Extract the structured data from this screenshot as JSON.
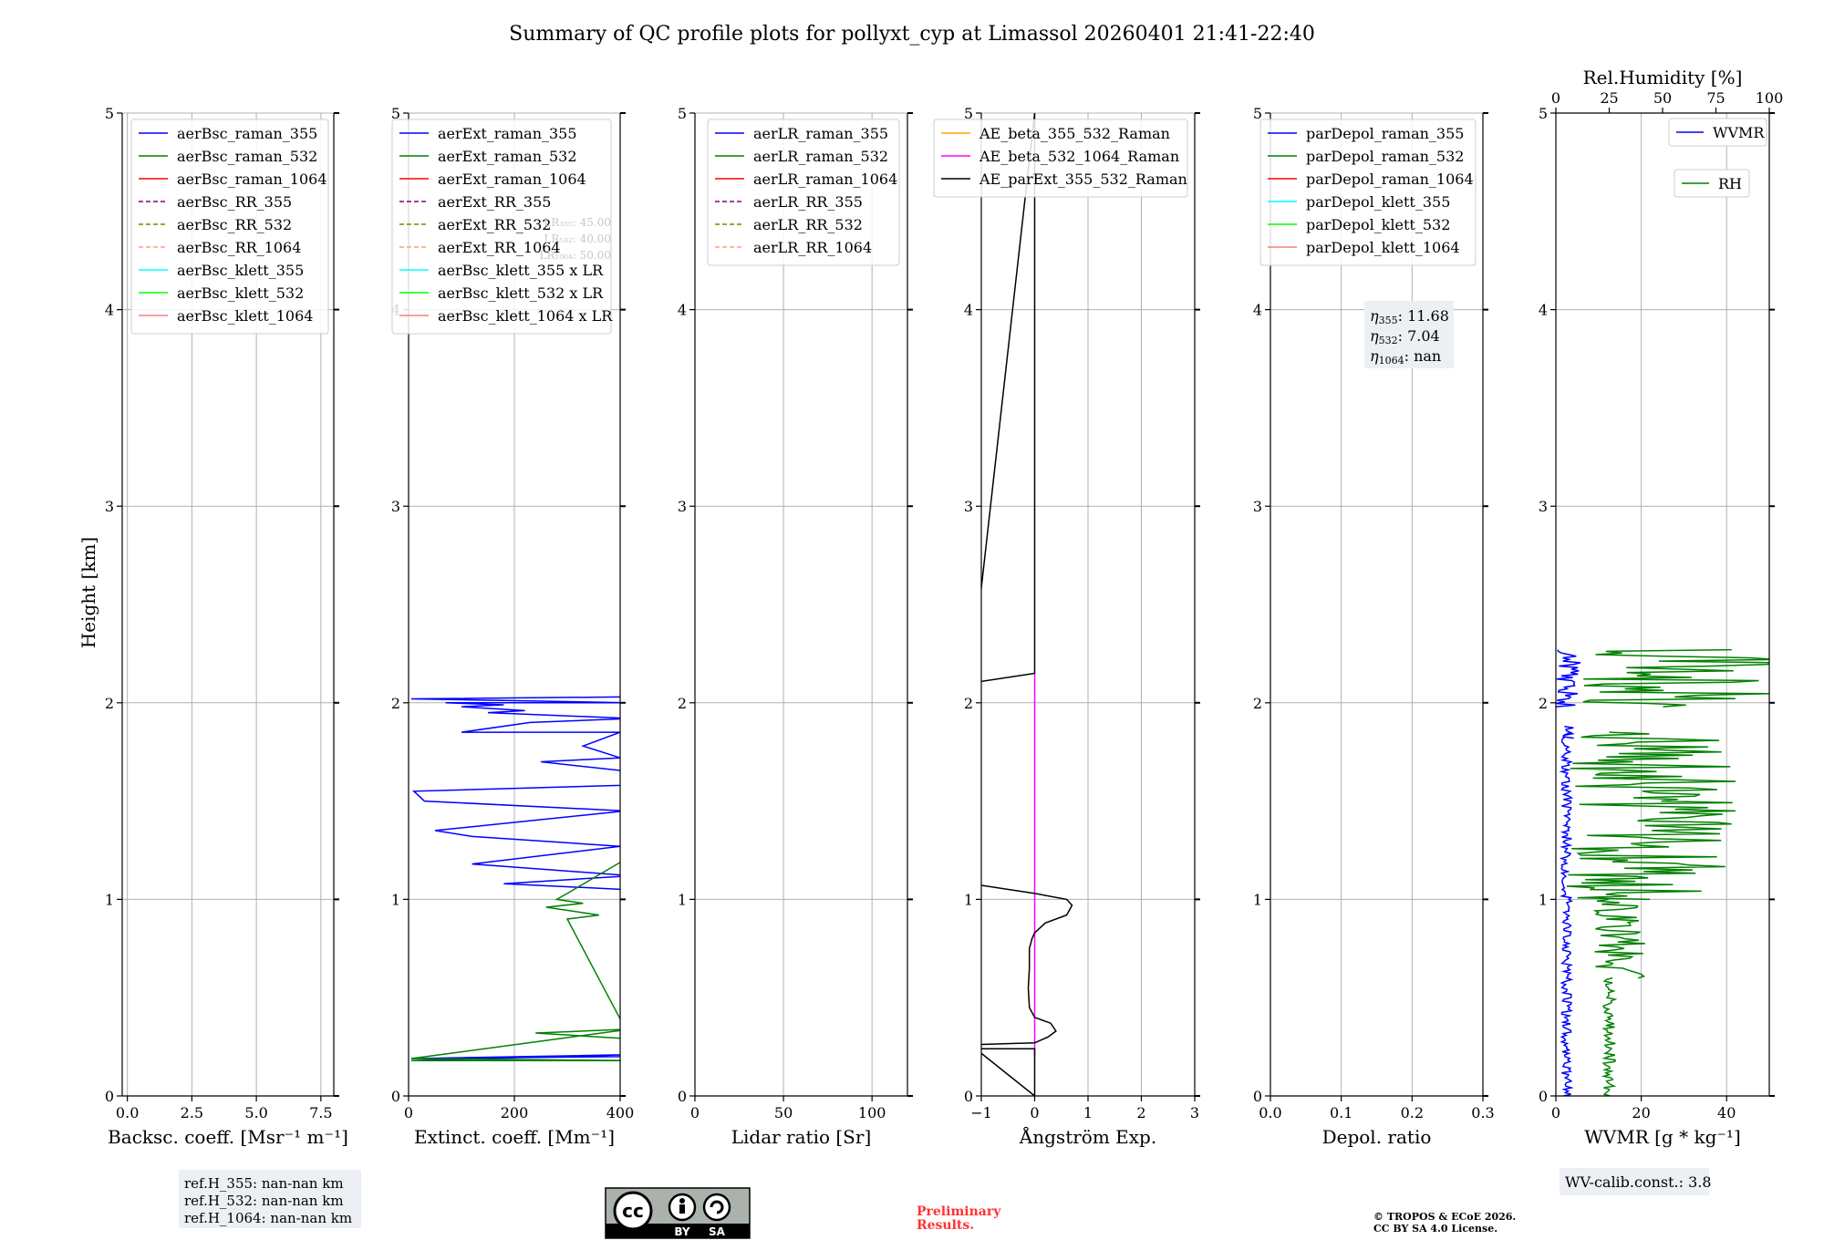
{
  "title": "Summary of QC profile plots for pollyxt_cyp at Limassol 20260401 21:41-22:40",
  "ylabel": "Height [km]",
  "y_ticks": [
    0,
    1,
    2,
    3,
    4,
    5
  ],
  "ylim": [
    0,
    5
  ],
  "chart_data": [
    {
      "id": "bsc",
      "type": "line",
      "xlabel": "Backsc. coeff. [Msr⁻¹ m⁻¹]",
      "xlim": [
        -0.2,
        8.0
      ],
      "x_ticks": [
        0.0,
        2.5,
        5.0,
        7.5
      ],
      "x_tick_labels": [
        "0.0",
        "2.5",
        "5.0",
        "7.5"
      ],
      "legend": [
        {
          "label": "aerBsc_raman_355",
          "color": "#0000ff",
          "dash": false
        },
        {
          "label": "aerBsc_raman_532",
          "color": "#008000",
          "dash": false
        },
        {
          "label": "aerBsc_raman_1064",
          "color": "#ff0000",
          "dash": false
        },
        {
          "label": "aerBsc_RR_355",
          "color": "#800080",
          "dash": true
        },
        {
          "label": "aerBsc_RR_532",
          "color": "#808000",
          "dash": true
        },
        {
          "label": "aerBsc_RR_1064",
          "color": "#ffa07a",
          "dash": true
        },
        {
          "label": "aerBsc_klett_355",
          "color": "#00ffff",
          "dash": false
        },
        {
          "label": "aerBsc_klett_532",
          "color": "#00ff00",
          "dash": false
        },
        {
          "label": "aerBsc_klett_1064",
          "color": "#f08080",
          "dash": false
        }
      ],
      "series": []
    },
    {
      "id": "ext",
      "type": "line",
      "xlabel": "Extinct. coeff. [Mm⁻¹]",
      "xlim": [
        0,
        400
      ],
      "x_ticks": [
        0,
        200,
        400
      ],
      "x_tick_labels": [
        "0",
        "200",
        "400"
      ],
      "legend": [
        {
          "label": "aerExt_raman_355",
          "color": "#0000ff",
          "dash": false
        },
        {
          "label": "aerExt_raman_532",
          "color": "#008000",
          "dash": false
        },
        {
          "label": "aerExt_raman_1064",
          "color": "#ff0000",
          "dash": false
        },
        {
          "label": "aerExt_RR_355",
          "color": "#800080",
          "dash": true
        },
        {
          "label": "aerExt_RR_532",
          "color": "#808000",
          "dash": true
        },
        {
          "label": "aerExt_RR_1064",
          "color": "#ffa07a",
          "dash": true
        },
        {
          "label": "aerBsc_klett_355 x LR",
          "color": "#00ffff",
          "dash": false
        },
        {
          "label": "aerBsc_klett_532 x LR",
          "color": "#00ff00",
          "dash": false
        },
        {
          "label": "aerBsc_klett_1064 x LR",
          "color": "#f08080",
          "dash": false
        }
      ],
      "series": [
        {
          "name": "aerExt_raman_355",
          "color": "#0000ff",
          "x": [
            5,
            420,
            5,
            400,
            420,
            410,
            180,
            420,
            120,
            400,
            120,
            50,
            410,
            30,
            10,
            400,
            420,
            250,
            400,
            330,
            400,
            100,
            230,
            420,
            150,
            220,
            100,
            180,
            70,
            420,
            5,
            5,
            420
          ],
          "y": [
            0.18,
            0.21,
            0.19,
            0.2,
            1.03,
            1.05,
            1.08,
            1.12,
            1.18,
            1.27,
            1.32,
            1.35,
            1.45,
            1.5,
            1.55,
            1.58,
            1.65,
            1.7,
            1.72,
            1.78,
            1.85,
            1.85,
            1.9,
            1.92,
            1.95,
            1.96,
            1.98,
            1.99,
            2.0,
            2.0,
            2.02,
            2.02,
            2.03
          ]
        },
        {
          "name": "aerExt_raman_532",
          "color": "#008000",
          "x": [
            5,
            420,
            5,
            420,
            240,
            420,
            300,
            360,
            260,
            330,
            280,
            300,
            420
          ],
          "y": [
            0.18,
            0.18,
            0.19,
            0.34,
            0.32,
            0.29,
            0.9,
            0.92,
            0.96,
            0.98,
            1.0,
            1.03,
            1.22
          ]
        }
      ],
      "faded_text": [
        "LR₃₅₅: 45.00",
        "LR₅₃₂: 40.00",
        "LR₁₀₆₄: 50.00"
      ]
    },
    {
      "id": "lr",
      "type": "line",
      "xlabel": "Lidar ratio [Sr]",
      "xlim": [
        0,
        120
      ],
      "x_ticks": [
        0,
        50,
        100
      ],
      "x_tick_labels": [
        "0",
        "50",
        "100"
      ],
      "legend": [
        {
          "label": "aerLR_raman_355",
          "color": "#0000ff",
          "dash": false
        },
        {
          "label": "aerLR_raman_532",
          "color": "#008000",
          "dash": false
        },
        {
          "label": "aerLR_raman_1064",
          "color": "#ff0000",
          "dash": false
        },
        {
          "label": "aerLR_RR_355",
          "color": "#800080",
          "dash": true
        },
        {
          "label": "aerLR_RR_532",
          "color": "#808000",
          "dash": true
        },
        {
          "label": "aerLR_RR_1064",
          "color": "#ffa07a",
          "dash": true
        }
      ],
      "series": []
    },
    {
      "id": "ae",
      "type": "line",
      "xlabel": "Ångström Exp.",
      "xlim": [
        -1,
        3
      ],
      "x_ticks": [
        -1,
        0,
        1,
        2,
        3
      ],
      "x_tick_labels": [
        "−1",
        "0",
        "1",
        "2",
        "3"
      ],
      "legend": [
        {
          "label": "AE_beta_355_532_Raman",
          "color": "#ffa500",
          "dash": false
        },
        {
          "label": "AE_beta_532_1064_Raman",
          "color": "#ff00ff",
          "dash": false
        },
        {
          "label": "AE_parExt_355_532_Raman",
          "color": "#000000",
          "dash": false
        }
      ],
      "series": [
        {
          "name": "AE_beta_532_1064_Raman",
          "color": "#ff00ff",
          "x": [
            0,
            0
          ],
          "y": [
            0.2,
            2.15
          ]
        },
        {
          "name": "AE_parExt_355_532_Raman",
          "color": "#000000",
          "x": [
            -1.2,
            0,
            0,
            -1.2,
            0.0,
            0.25,
            0.4,
            0.3,
            0.0,
            -0.1,
            -0.12,
            -0.1,
            -0.1,
            -0.05,
            0.0,
            0.2,
            0.6,
            0.7,
            0.6,
            0.0,
            -1.2,
            -1.2,
            0,
            0,
            -1.2
          ],
          "y": [
            0.24,
            0.24,
            0.0,
            0.26,
            0.27,
            0.3,
            0.33,
            0.37,
            0.4,
            0.45,
            0.55,
            0.65,
            0.75,
            0.8,
            0.83,
            0.88,
            0.92,
            0.97,
            1.0,
            1.03,
            1.08,
            2.1,
            2.15,
            5.0,
            2.1
          ]
        }
      ]
    },
    {
      "id": "depol",
      "type": "line",
      "xlabel": "Depol. ratio",
      "xlim": [
        0,
        0.3
      ],
      "x_ticks": [
        0.0,
        0.1,
        0.2,
        0.3
      ],
      "x_tick_labels": [
        "0.0",
        "0.1",
        "0.2",
        "0.3"
      ],
      "legend": [
        {
          "label": "parDepol_raman_355",
          "color": "#0000ff",
          "dash": false
        },
        {
          "label": "parDepol_raman_532",
          "color": "#008000",
          "dash": false
        },
        {
          "label": "parDepol_raman_1064",
          "color": "#ff0000",
          "dash": false
        },
        {
          "label": "parDepol_klett_355",
          "color": "#00ffff",
          "dash": false
        },
        {
          "label": "parDepol_klett_532",
          "color": "#00ff00",
          "dash": false
        },
        {
          "label": "parDepol_klett_1064",
          "color": "#f08080",
          "dash": false
        }
      ],
      "eta": [
        "11.68",
        "7.04",
        "nan"
      ],
      "series": []
    },
    {
      "id": "wv",
      "type": "line",
      "xlabel": "WVMR [g * kg⁻¹]",
      "xlim": [
        0,
        50
      ],
      "x_ticks": [
        0,
        20,
        40
      ],
      "x_tick_labels": [
        "0",
        "20",
        "40"
      ],
      "top_xlabel": "Rel.Humidity [%]",
      "top_xlim": [
        0,
        100
      ],
      "top_ticks": [
        0,
        25,
        50,
        75,
        100
      ],
      "top_tick_labels": [
        "0",
        "25",
        "50",
        "75",
        "100"
      ],
      "legend": [
        {
          "label": "WVMR",
          "color": "#0000ff",
          "dash": false
        },
        {
          "label": "RH",
          "color": "#008000",
          "dash": false
        }
      ],
      "calib_label": "WV-calib.const.: 3.8",
      "series": [
        {
          "name": "WVMR",
          "color": "#0000ff",
          "axis": "bottom",
          "seed": 3,
          "segments": [
            [
              0.0,
              1.85,
              2.5,
              1.2
            ],
            [
              1.88,
              1.82,
              3.0,
              1.5
            ],
            [
              1.98,
              2.27,
              3.0,
              3.0
            ]
          ],
          "top_point": [
            2.27,
            13
          ]
        },
        {
          "name": "RH",
          "color": "#008000",
          "axis": "top",
          "seed": 7,
          "segments": [
            [
              0.0,
              0.6,
              25.0,
              3.0
            ],
            [
              0.6,
              1.0,
              30.0,
              12.0
            ],
            [
              1.0,
              1.85,
              45.0,
              40.0
            ],
            [
              1.98,
              2.27,
              60.0,
              50.0
            ]
          ]
        }
      ]
    }
  ],
  "ref_heights": [
    "ref.H_355: nan-nan km",
    "ref.H_532: nan-nan km",
    "ref.H_1064: nan-nan km"
  ],
  "license_badge": {
    "cc": "cc",
    "by": "BY",
    "sa": "SA"
  },
  "preliminary": [
    "Preliminary",
    "Results."
  ],
  "copyright": [
    "© TROPOS & ECoE 2026.",
    "CC BY SA 4.0 License."
  ],
  "colors": {
    "accent_red": "#ff0000",
    "grid": "#b0b0b0",
    "legend_border": "#cccccc"
  }
}
